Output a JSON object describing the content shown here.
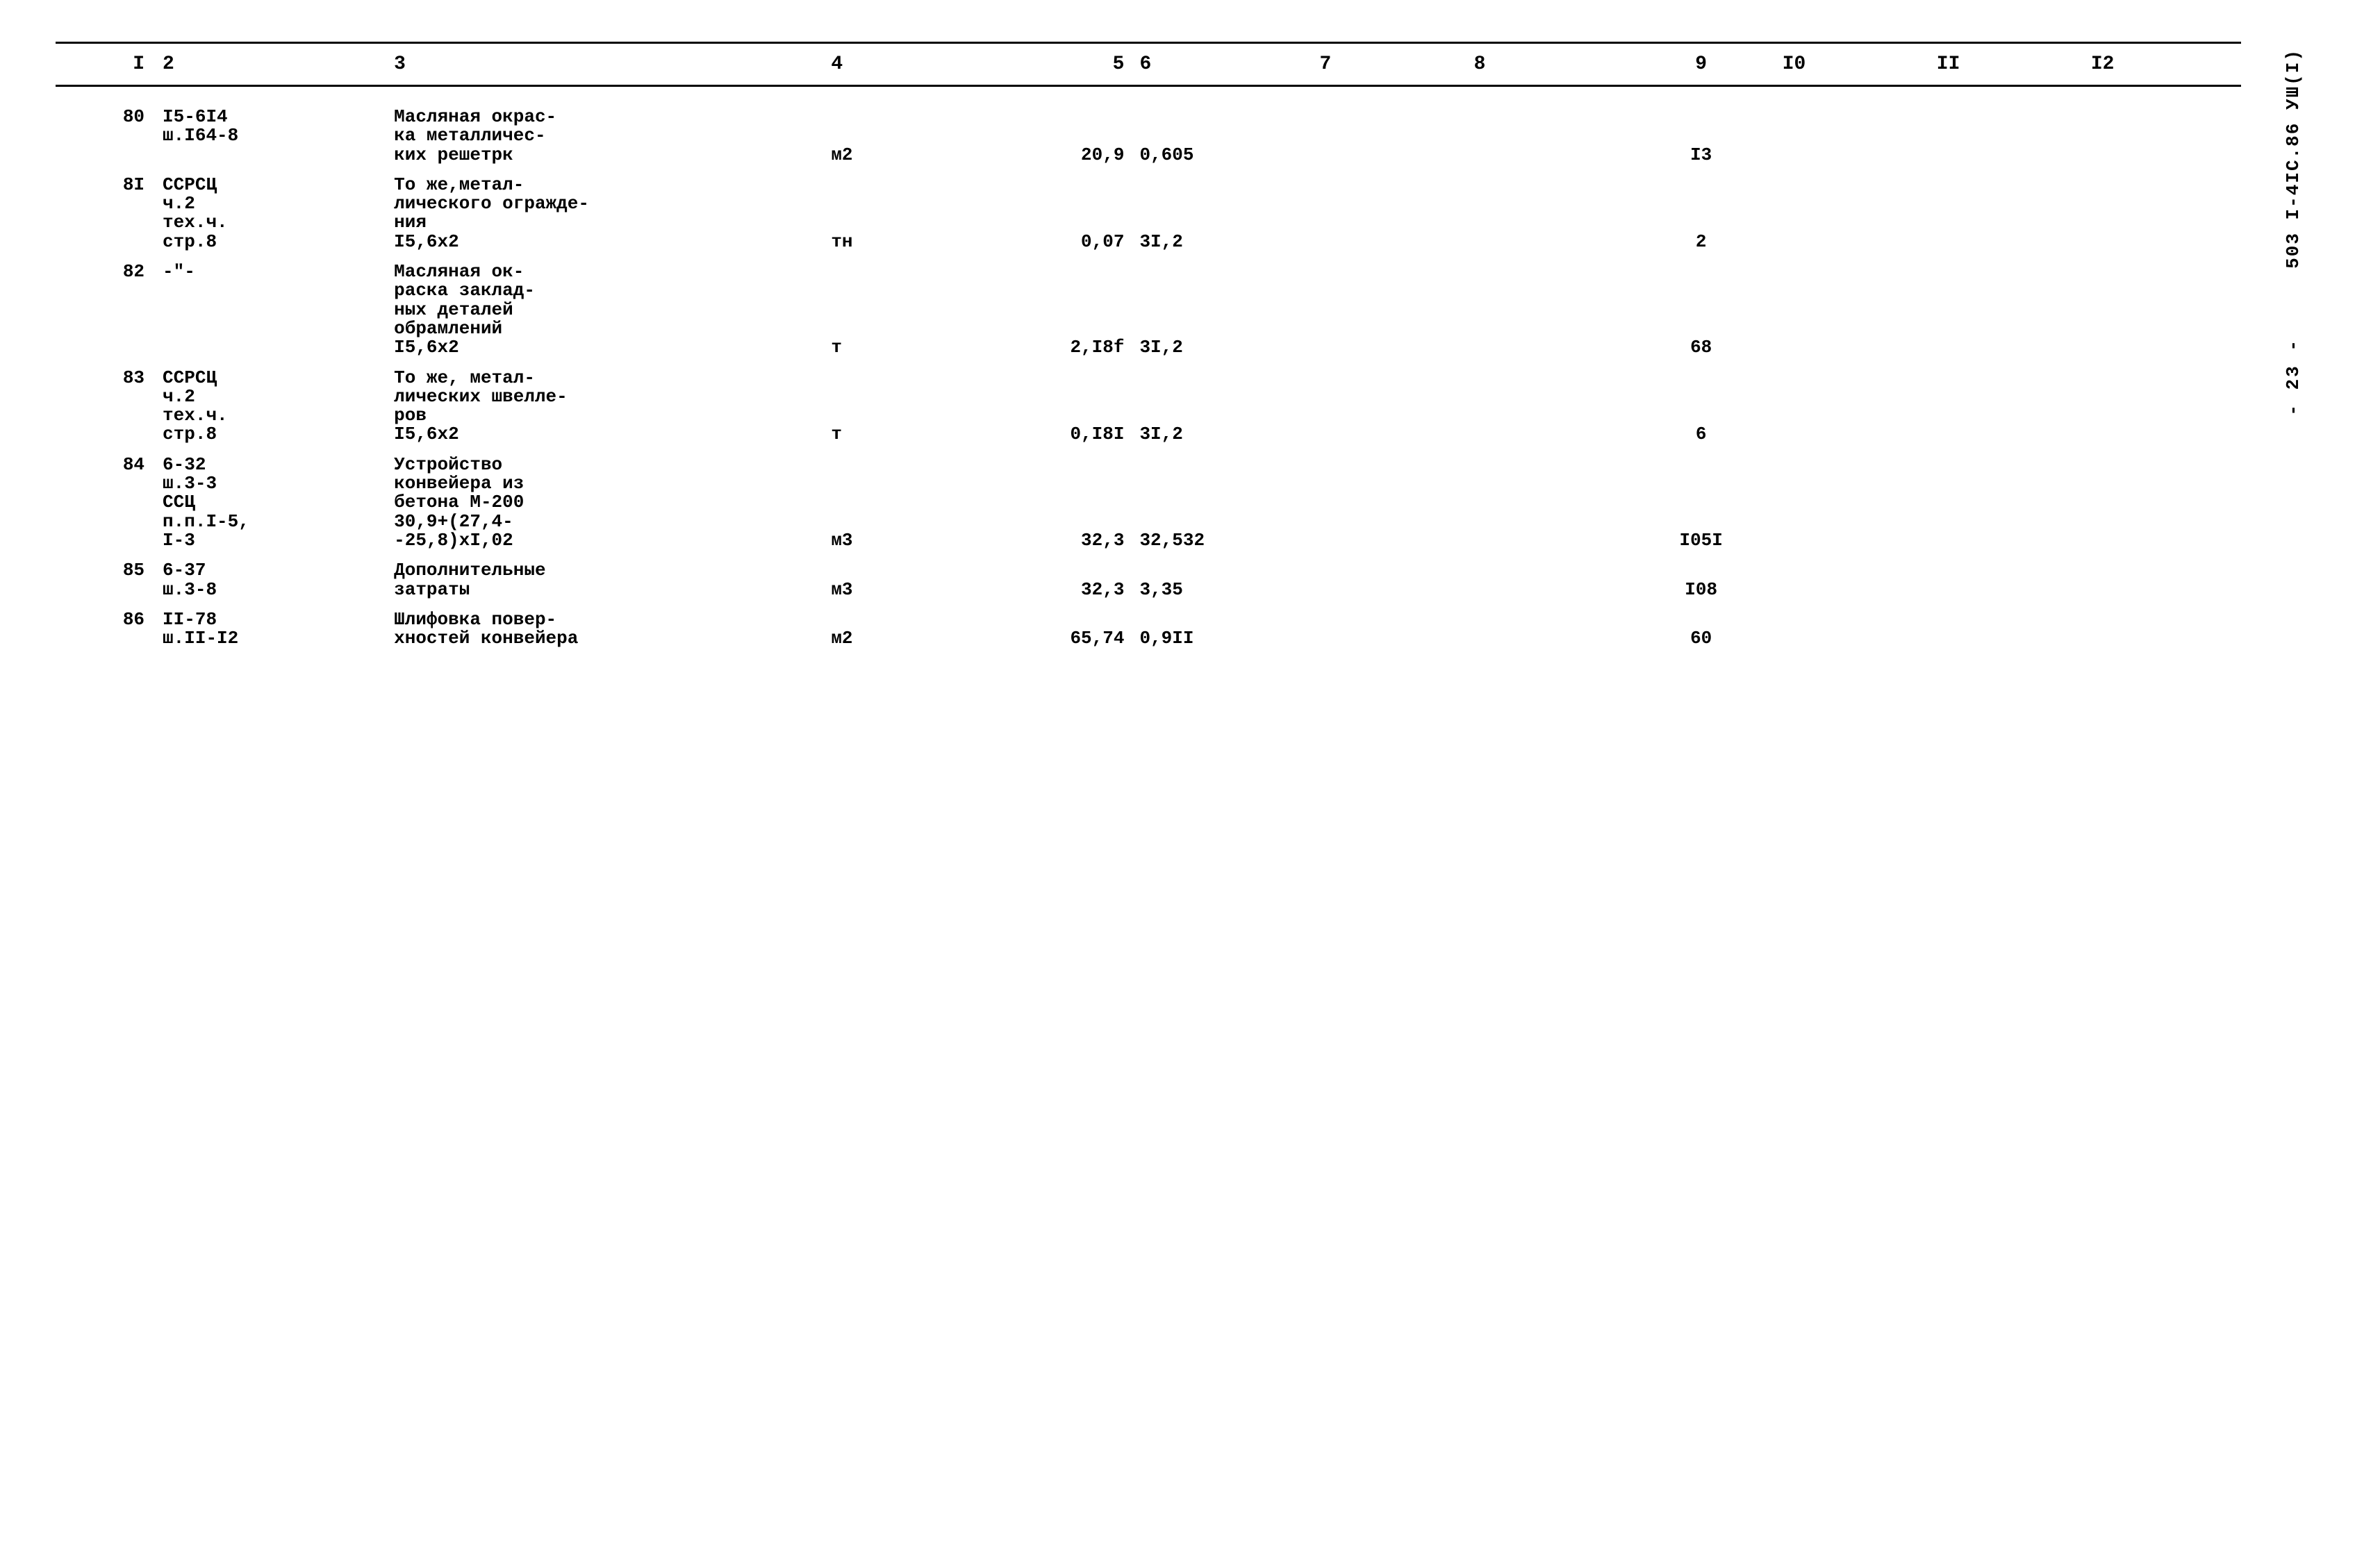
{
  "document": {
    "side_code": "503 I-4IС.86 УШ(I)",
    "page_number": "- 23 -",
    "background_color": "#ffffff",
    "text_color": "#000000",
    "font_family": "Courier New",
    "header_fontsize": 28,
    "body_fontsize": 26,
    "border_width": 3,
    "columns": [
      "I",
      "2",
      "3",
      "4",
      "5",
      "6",
      "7",
      "8",
      "9",
      "I0",
      "II",
      "I2"
    ],
    "column_widths_pct": [
      4,
      9,
      17,
      5,
      7,
      7,
      6,
      6,
      6,
      6,
      6,
      6
    ],
    "rows": [
      {
        "c1": "80",
        "c2": "I5-6I4\nш.I64-8",
        "c3": "Масляная окрас-\nка металличес-\nких решетрк",
        "c4": "м2",
        "c5": "20,9",
        "c6": "0,605",
        "c7": "",
        "c8": "",
        "c9": "I3",
        "c10": "",
        "c11": "",
        "c12": ""
      },
      {
        "c1": "8I",
        "c2": "ССРСЦ\nч.2\nтех.ч.\nстр.8",
        "c3": "То же,метал-\nлического огражде-\nния\nI5,6х2",
        "c4": "тн",
        "c5": "0,07",
        "c6": "3I,2",
        "c7": "",
        "c8": "",
        "c9": "2",
        "c10": "",
        "c11": "",
        "c12": ""
      },
      {
        "c1": "82",
        "c2": "-\"-",
        "c3": "Масляная ок-\nраска заклад-\nных деталей\nобрамлений\nI5,6х2",
        "c4": "т",
        "c5": "2,I8f",
        "c6": "3I,2",
        "c7": "",
        "c8": "",
        "c9": "68",
        "c10": "",
        "c11": "",
        "c12": ""
      },
      {
        "c1": "83",
        "c2": "ССРСЦ\nч.2\nтех.ч.\nстр.8",
        "c3": "То же, метал-\nлических швелле-\nров\nI5,6х2",
        "c4": "т",
        "c5": "0,I8I",
        "c6": "3I,2",
        "c7": "",
        "c8": "",
        "c9": "6",
        "c10": "",
        "c11": "",
        "c12": ""
      },
      {
        "c1": "84",
        "c2": "6-32\nш.3-3\nССЦ\nп.п.I-5,\nI-3",
        "c3": "Устройство\nконвейера из\nбетона М-200\n30,9+(27,4-\n-25,8)хI,02",
        "c4": "м3",
        "c5": "32,3",
        "c6": "32,532",
        "c7": "",
        "c8": "",
        "c9": "I05I",
        "c10": "",
        "c11": "",
        "c12": ""
      },
      {
        "c1": "85",
        "c2": "6-37\nш.3-8",
        "c3": "Дополнительные\nзатраты",
        "c4": "м3",
        "c5": "32,3",
        "c6": "3,35",
        "c7": "",
        "c8": "",
        "c9": "I08",
        "c10": "",
        "c11": "",
        "c12": ""
      },
      {
        "c1": "86",
        "c2": "II-78\nш.II-I2",
        "c3": "Шлифовка повер-\nхностей конвейера",
        "c4": "м2",
        "c5": "65,74",
        "c6": "0,9II",
        "c7": "",
        "c8": "",
        "c9": "60",
        "c10": "",
        "c11": "",
        "c12": ""
      }
    ]
  }
}
